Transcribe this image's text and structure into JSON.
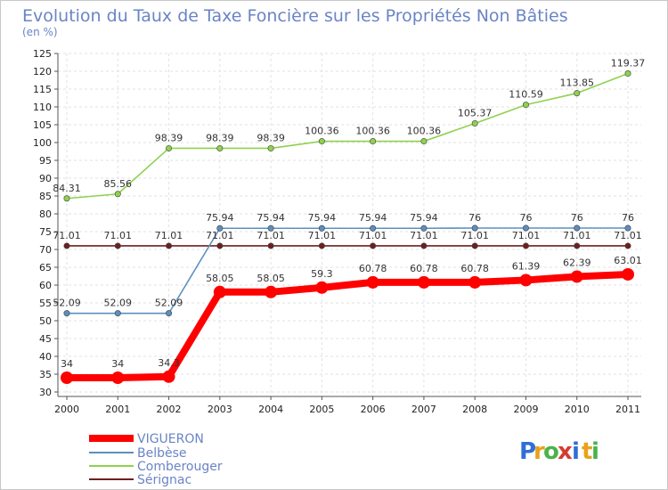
{
  "chart_data": {
    "type": "line",
    "title": "Evolution du Taux de Taxe Foncière sur les Propriétés Non Bâties",
    "subtitle": "(en %)",
    "x": [
      "2000",
      "2001",
      "2002",
      "2003",
      "2004",
      "2005",
      "2006",
      "2007",
      "2008",
      "2009",
      "2010",
      "2011"
    ],
    "ylim": [
      30,
      125
    ],
    "yticks": [
      "30",
      "35",
      "40",
      "45",
      "50",
      "55",
      "60",
      "65",
      "70",
      "75",
      "80",
      "85",
      "90",
      "95",
      "100",
      "105",
      "110",
      "115",
      "120",
      "125"
    ],
    "grid": true,
    "legend_position": "bottom-left",
    "series": [
      {
        "name": "Sérignac",
        "color": "#6e1f1f",
        "values": [
          71.01,
          71.01,
          71.01,
          71.01,
          71.01,
          71.01,
          71.01,
          71.01,
          71.01,
          71.01,
          71.01,
          71.01
        ],
        "labels": [
          "71.01",
          "71.01",
          "71.01",
          "71.01",
          "71.01",
          "71.01",
          "71.01",
          "71.01",
          "71.01",
          "71.01",
          "71.01",
          "71.01"
        ]
      },
      {
        "name": "Belbèse",
        "color": "#5b8fc0",
        "values": [
          52.09,
          52.09,
          52.09,
          75.94,
          75.94,
          75.94,
          75.94,
          75.94,
          76,
          76,
          76,
          76
        ],
        "labels": [
          "52.09",
          "52.09",
          "52.09",
          "75.94",
          "75.94",
          "75.94",
          "75.94",
          "75.94",
          "76",
          "76",
          "76",
          "76"
        ]
      },
      {
        "name": "Comberouger",
        "color": "#8fd14f",
        "values": [
          84.31,
          85.56,
          98.39,
          98.39,
          98.39,
          100.36,
          100.36,
          100.36,
          105.37,
          110.59,
          113.85,
          119.37
        ],
        "labels": [
          "84.31",
          "85.56",
          "98.39",
          "98.39",
          "98.39",
          "100.36",
          "100.36",
          "100.36",
          "105.37",
          "110.59",
          "113.85",
          "119.37"
        ]
      },
      {
        "name": "VIGUERON",
        "color": "#ff0000",
        "values": [
          34,
          34,
          34.3,
          58.05,
          58.05,
          59.3,
          60.78,
          60.78,
          60.78,
          61.39,
          62.39,
          63.01
        ],
        "labels": [
          "34",
          "34",
          "34.3",
          "58.05",
          "58.05",
          "59.3",
          "60.78",
          "60.78",
          "60.78",
          "61.39",
          "62.39",
          "63.01"
        ]
      }
    ]
  },
  "legend": {
    "items": [
      "VIGUERON",
      "Belbèse",
      "Comberouger",
      "Sérignac"
    ]
  },
  "brand": {
    "letters": [
      "P",
      "r",
      "o",
      "x",
      "i",
      "t",
      "i"
    ],
    "colors": [
      "#2f6fd6",
      "#e8a21a",
      "#49b349",
      "#d63a2f",
      "#2f6fd6",
      "#e8a21a",
      "#49b349"
    ]
  }
}
